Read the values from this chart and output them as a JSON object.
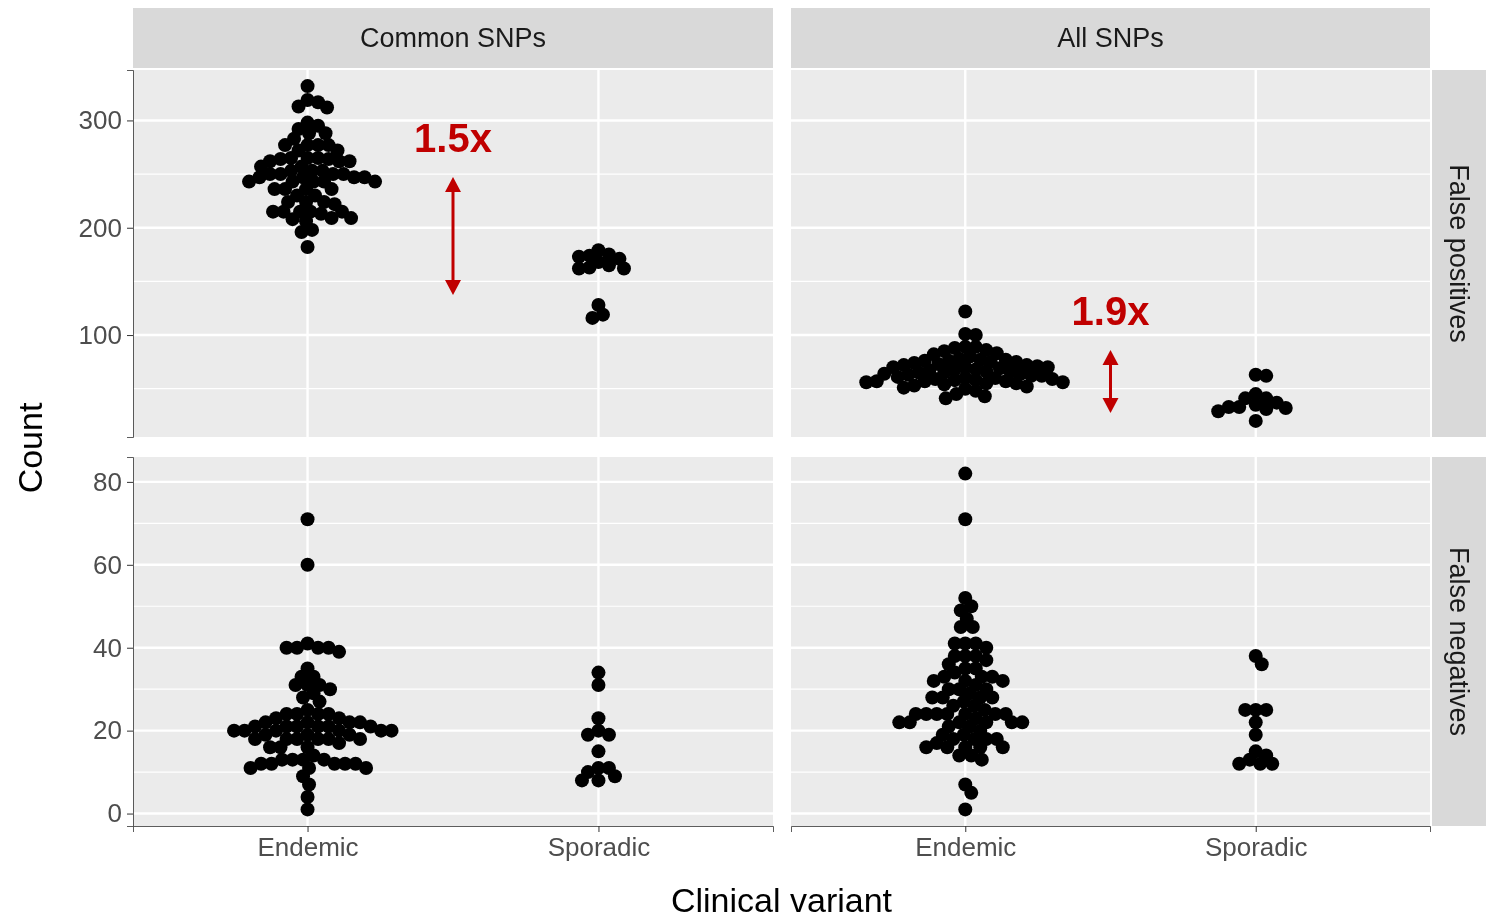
{
  "chart_data": [
    {
      "type": "scatter",
      "title": "Common SNPs",
      "ylabel": "Count",
      "categories": [
        "Endemic",
        "Sporadic"
      ],
      "ylim": [
        5,
        347
      ],
      "yticks": [
        100,
        200,
        300
      ],
      "grid": true,
      "marker": "circle",
      "tick_labels": "y",
      "annotations": [
        "1.5x"
      ],
      "series": [
        {
          "color": "#000000",
          "x": [
            "Endemic",
            "Endemic",
            "Endemic",
            "Endemic",
            "Endemic",
            "Endemic",
            "Endemic",
            "Endemic",
            "Endemic",
            "Endemic",
            "Endemic",
            "Endemic",
            "Endemic",
            "Endemic",
            "Endemic",
            "Endemic",
            "Endemic",
            "Endemic",
            "Endemic",
            "Endemic",
            "Endemic",
            "Endemic",
            "Endemic",
            "Endemic",
            "Endemic",
            "Endemic",
            "Endemic",
            "Endemic",
            "Endemic",
            "Endemic",
            "Endemic",
            "Endemic",
            "Endemic",
            "Endemic",
            "Endemic",
            "Endemic",
            "Endemic",
            "Endemic",
            "Endemic",
            "Endemic",
            "Endemic",
            "Endemic",
            "Endemic",
            "Endemic",
            "Endemic",
            "Endemic",
            "Endemic",
            "Endemic",
            "Endemic",
            "Endemic",
            "Endemic",
            "Endemic",
            "Endemic",
            "Endemic",
            "Endemic",
            "Endemic",
            "Endemic",
            "Endemic",
            "Endemic",
            "Endemic",
            "Endemic",
            "Endemic",
            "Endemic",
            "Endemic",
            "Endemic",
            "Endemic"
          ],
          "values": [
            332,
            319,
            317,
            313,
            312,
            298,
            295,
            292,
            288,
            288,
            283,
            277,
            277,
            277,
            277,
            272,
            272,
            265,
            264,
            264,
            265,
            265,
            262,
            262,
            262,
            257,
            257,
            253,
            253,
            253,
            250,
            250,
            250,
            250,
            247,
            247,
            247,
            247,
            243,
            243,
            243,
            243,
            243,
            236,
            236,
            236,
            236,
            230,
            230,
            224,
            224,
            224,
            222,
            215,
            215,
            215,
            215,
            215,
            213,
            209,
            209,
            208,
            206,
            196,
            198,
            182
          ]
        },
        {
          "color": "#000000",
          "x": [
            "Sporadic",
            "Sporadic",
            "Sporadic",
            "Sporadic",
            "Sporadic",
            "Sporadic",
            "Sporadic",
            "Sporadic",
            "Sporadic",
            "Sporadic",
            "Sporadic",
            "Sporadic",
            "Sporadic"
          ],
          "values": [
            162,
            175,
            168,
            173,
            163,
            171,
            179,
            162,
            128,
            119,
            116,
            174,
            165
          ]
        }
      ]
    },
    {
      "type": "scatter",
      "title": "All SNPs",
      "y2label": "False positives",
      "categories": [
        "Endemic",
        "Sporadic"
      ],
      "ylim": [
        5,
        347
      ],
      "yticks": [
        100,
        200,
        300
      ],
      "grid": true,
      "marker": "circle",
      "tick_labels": false,
      "annotations": [
        "1.9x"
      ],
      "series": [
        {
          "color": "#000000",
          "x": [
            "Endemic",
            "Endemic",
            "Endemic",
            "Endemic",
            "Endemic",
            "Endemic",
            "Endemic",
            "Endemic",
            "Endemic",
            "Endemic",
            "Endemic",
            "Endemic",
            "Endemic",
            "Endemic",
            "Endemic",
            "Endemic",
            "Endemic",
            "Endemic",
            "Endemic",
            "Endemic",
            "Endemic",
            "Endemic",
            "Endemic",
            "Endemic",
            "Endemic",
            "Endemic",
            "Endemic",
            "Endemic",
            "Endemic",
            "Endemic",
            "Endemic",
            "Endemic",
            "Endemic",
            "Endemic",
            "Endemic",
            "Endemic",
            "Endemic",
            "Endemic",
            "Endemic",
            "Endemic",
            "Endemic",
            "Endemic",
            "Endemic",
            "Endemic",
            "Endemic",
            "Endemic",
            "Endemic",
            "Endemic",
            "Endemic",
            "Endemic",
            "Endemic",
            "Endemic",
            "Endemic",
            "Endemic",
            "Endemic",
            "Endemic",
            "Endemic",
            "Endemic",
            "Endemic",
            "Endemic",
            "Endemic",
            "Endemic"
          ],
          "values": [
            122,
            101,
            100,
            89,
            89,
            88,
            86,
            85,
            83,
            82,
            80,
            78,
            77,
            77,
            76,
            76,
            75,
            75,
            74,
            73,
            72,
            72,
            71,
            70,
            70,
            70,
            69,
            68,
            68,
            67,
            66,
            66,
            65,
            65,
            64,
            64,
            63,
            62,
            62,
            61,
            60,
            60,
            59,
            59,
            58,
            58,
            57,
            57,
            57,
            56,
            56,
            55,
            55,
            54,
            53,
            52,
            51,
            50,
            48,
            45,
            43,
            41
          ]
        },
        {
          "color": "#000000",
          "x": [
            "Sporadic",
            "Sporadic",
            "Sporadic",
            "Sporadic",
            "Sporadic",
            "Sporadic",
            "Sporadic",
            "Sporadic",
            "Sporadic",
            "Sporadic",
            "Sporadic",
            "Sporadic",
            "Sporadic"
          ],
          "values": [
            33,
            37,
            41,
            32,
            29,
            62,
            20,
            41,
            45,
            63,
            33,
            31,
            35
          ]
        }
      ]
    },
    {
      "type": "scatter",
      "xlabel": "Clinical variant",
      "categories": [
        "Endemic",
        "Sporadic"
      ],
      "ylim": [
        -3,
        86
      ],
      "yticks": [
        0,
        20,
        40,
        60,
        80
      ],
      "grid": true,
      "marker": "circle",
      "series": [
        {
          "color": "#000000",
          "x": [
            "Endemic",
            "Endemic",
            "Endemic",
            "Endemic",
            "Endemic",
            "Endemic",
            "Endemic",
            "Endemic",
            "Endemic",
            "Endemic",
            "Endemic",
            "Endemic",
            "Endemic",
            "Endemic",
            "Endemic",
            "Endemic",
            "Endemic",
            "Endemic",
            "Endemic",
            "Endemic",
            "Endemic",
            "Endemic",
            "Endemic",
            "Endemic",
            "Endemic",
            "Endemic",
            "Endemic",
            "Endemic",
            "Endemic",
            "Endemic",
            "Endemic",
            "Endemic",
            "Endemic",
            "Endemic",
            "Endemic",
            "Endemic",
            "Endemic",
            "Endemic",
            "Endemic",
            "Endemic",
            "Endemic",
            "Endemic",
            "Endemic",
            "Endemic",
            "Endemic",
            "Endemic",
            "Endemic",
            "Endemic",
            "Endemic",
            "Endemic",
            "Endemic",
            "Endemic",
            "Endemic",
            "Endemic",
            "Endemic",
            "Endemic",
            "Endemic",
            "Endemic",
            "Endemic",
            "Endemic",
            "Endemic",
            "Endemic",
            "Endemic",
            "Endemic",
            "Endemic",
            "Endemic",
            "Endemic",
            "Endemic",
            "Endemic",
            "Endemic",
            "Endemic"
          ],
          "values": [
            71,
            60,
            41,
            40,
            40,
            40,
            40,
            39,
            35,
            33,
            33,
            31,
            31,
            31,
            30,
            29,
            28,
            27,
            25,
            24,
            24,
            24,
            23,
            23,
            22,
            22,
            22,
            21,
            21,
            21,
            21,
            21,
            21,
            20,
            20,
            20,
            20,
            20,
            20,
            19,
            19,
            18,
            18,
            18,
            18,
            18,
            17,
            16,
            16,
            14,
            13,
            13,
            13,
            12,
            12,
            12,
            12,
            12,
            11,
            11,
            11,
            9,
            7,
            4,
            1,
            19,
            18,
            22,
            24,
            16,
            13
          ]
        },
        {
          "color": "#000000",
          "x": [
            "Sporadic",
            "Sporadic",
            "Sporadic",
            "Sporadic",
            "Sporadic",
            "Sporadic",
            "Sporadic",
            "Sporadic",
            "Sporadic",
            "Sporadic",
            "Sporadic",
            "Sporadic",
            "Sporadic"
          ],
          "values": [
            34,
            31,
            23,
            20,
            19,
            19,
            15,
            11,
            11,
            10,
            9,
            8,
            8
          ]
        }
      ]
    },
    {
      "type": "scatter",
      "y2label": "False negatives",
      "categories": [
        "Endemic",
        "Sporadic"
      ],
      "ylim": [
        -3,
        86
      ],
      "yticks": [
        0,
        20,
        40,
        60,
        80
      ],
      "grid": true,
      "marker": "circle",
      "tick_labels": "x",
      "series": [
        {
          "color": "#000000",
          "x": [
            "Endemic",
            "Endemic",
            "Endemic",
            "Endemic",
            "Endemic",
            "Endemic",
            "Endemic",
            "Endemic",
            "Endemic",
            "Endemic",
            "Endemic",
            "Endemic",
            "Endemic",
            "Endemic",
            "Endemic",
            "Endemic",
            "Endemic",
            "Endemic",
            "Endemic",
            "Endemic",
            "Endemic",
            "Endemic",
            "Endemic",
            "Endemic",
            "Endemic",
            "Endemic",
            "Endemic",
            "Endemic",
            "Endemic",
            "Endemic",
            "Endemic",
            "Endemic",
            "Endemic",
            "Endemic",
            "Endemic",
            "Endemic",
            "Endemic",
            "Endemic",
            "Endemic",
            "Endemic",
            "Endemic",
            "Endemic",
            "Endemic",
            "Endemic",
            "Endemic",
            "Endemic",
            "Endemic",
            "Endemic",
            "Endemic",
            "Endemic",
            "Endemic",
            "Endemic",
            "Endemic",
            "Endemic",
            "Endemic",
            "Endemic",
            "Endemic",
            "Endemic",
            "Endemic",
            "Endemic",
            "Endemic",
            "Endemic",
            "Endemic",
            "Endemic",
            "Endemic",
            "Endemic",
            "Endemic",
            "Endemic",
            "Endemic",
            "Endemic",
            "Endemic",
            "Endemic",
            "Endemic",
            "Endemic"
          ],
          "values": [
            82,
            71,
            52,
            50,
            49,
            47,
            45,
            45,
            41,
            41,
            41,
            40,
            38,
            38,
            38,
            36,
            35,
            35,
            33,
            33,
            33,
            32,
            32,
            32,
            30,
            30,
            30,
            28,
            28,
            28,
            28,
            26,
            26,
            25,
            24,
            24,
            24,
            24,
            24,
            24,
            24,
            23,
            22,
            22,
            22,
            22,
            22,
            22,
            21,
            21,
            19,
            19,
            18,
            18,
            18,
            18,
            17,
            16,
            16,
            16,
            16,
            16,
            14,
            14,
            13,
            7,
            5,
            1,
            20,
            27,
            31,
            29,
            34,
            37
          ]
        },
        {
          "color": "#000000",
          "x": [
            "Sporadic",
            "Sporadic",
            "Sporadic",
            "Sporadic",
            "Sporadic",
            "Sporadic",
            "Sporadic",
            "Sporadic",
            "Sporadic",
            "Sporadic",
            "Sporadic",
            "Sporadic",
            "Sporadic"
          ],
          "values": [
            38,
            36,
            25,
            25,
            25,
            22,
            19,
            15,
            14,
            13,
            12,
            12,
            12
          ]
        }
      ]
    }
  ]
}
